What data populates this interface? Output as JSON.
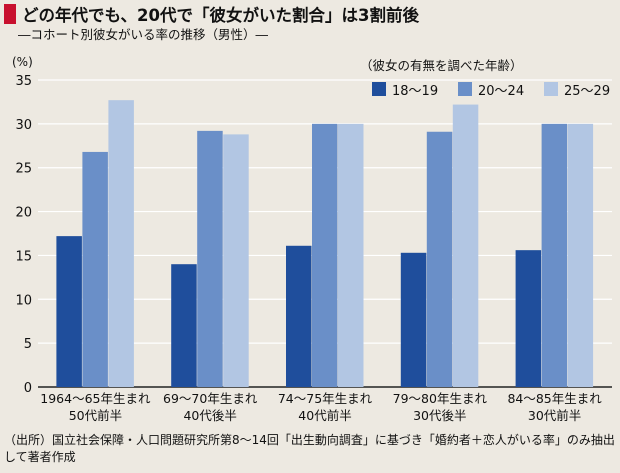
{
  "title": "どの年代でも、20代で「彼女がいた割合」は3割前後",
  "subtitle": "―コホート別彼女がいる率の推移（男性）―",
  "source_note": "（出所）国立社会保障・人口問題研究所第8～14回「出生動向調査」に基づき「婚約者＋恋人がいる率」のみ抽出して著者作成",
  "colors": {
    "background": "#ede9e1",
    "title_marker": "#c8102e"
  },
  "chart_data": {
    "type": "bar",
    "title": "どの年代でも、20代で「彼女がいた割合」は3割前後",
    "subtitle": "―コホート別彼女がいる率の推移（男性）―",
    "ylabel": "(%)",
    "xlabel": "",
    "ylim": [
      0,
      35
    ],
    "yticks": [
      0,
      5,
      10,
      15,
      20,
      25,
      30,
      35
    ],
    "grid": true,
    "legend_title": "（彼女の有無を調べた年齢）",
    "legend_position": "top-right",
    "categories": [
      [
        "1964～65年生まれ",
        "50代前半"
      ],
      [
        "69～70年生まれ",
        "40代後半"
      ],
      [
        "74～75年生まれ",
        "40代前半"
      ],
      [
        "79～80年生まれ",
        "30代後半"
      ],
      [
        "84～85年生まれ",
        "30代前半"
      ]
    ],
    "series": [
      {
        "name": "18～19",
        "color": "#1f4e9c",
        "values": [
          17.2,
          14.0,
          16.1,
          15.3,
          15.6
        ]
      },
      {
        "name": "20～24",
        "color": "#6a8fc8",
        "values": [
          26.8,
          29.2,
          30.0,
          29.1,
          30.0
        ]
      },
      {
        "name": "25～29",
        "color": "#b2c6e3",
        "values": [
          32.7,
          28.8,
          30.0,
          32.2,
          30.0
        ]
      }
    ]
  }
}
